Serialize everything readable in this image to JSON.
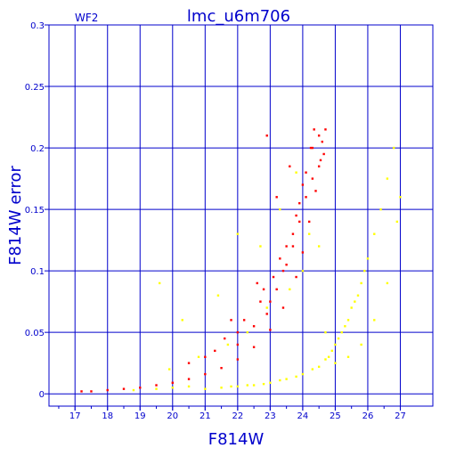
{
  "figure": {
    "corner_label": "WF2",
    "title": "lmc_u6m706",
    "x_label": "F814W",
    "y_label": "F814W error"
  },
  "colors": {
    "background": "#ffffff",
    "grid": "#0000cc",
    "text": "#0000cc",
    "series_red": "#ff0000",
    "series_yellow": "#ffff00"
  },
  "chart_data": {
    "type": "scatter",
    "title": "lmc_u6m706",
    "xlabel": "F814W",
    "ylabel": "F814W error",
    "xlim": [
      16.2,
      28.0
    ],
    "ylim": [
      -0.01,
      0.3
    ],
    "x_ticks": [
      17,
      18,
      19,
      20,
      21,
      22,
      23,
      24,
      25,
      26,
      27
    ],
    "x_tick_labels": [
      "17",
      "18",
      "19",
      "20",
      "21",
      "22",
      "23",
      "24",
      "25",
      "26",
      "27"
    ],
    "y_ticks": [
      0,
      0.05,
      0.1,
      0.15,
      0.2,
      0.25,
      0.3
    ],
    "y_tick_labels": [
      "0",
      "0.05",
      "0.1",
      "0.15",
      "0.2",
      "0.25",
      "0.3"
    ],
    "grid": true,
    "series": [
      {
        "color": "#ff0000",
        "points": [
          [
            17.2,
            0.002
          ],
          [
            17.5,
            0.002
          ],
          [
            18.0,
            0.003
          ],
          [
            18.5,
            0.004
          ],
          [
            19.0,
            0.005
          ],
          [
            19.5,
            0.007
          ],
          [
            20.0,
            0.009
          ],
          [
            20.5,
            0.012
          ],
          [
            21.0,
            0.016
          ],
          [
            21.5,
            0.021
          ],
          [
            22.0,
            0.028
          ],
          [
            22.5,
            0.038
          ],
          [
            23.0,
            0.052
          ],
          [
            23.4,
            0.07
          ],
          [
            23.8,
            0.095
          ],
          [
            24.0,
            0.115
          ],
          [
            24.2,
            0.14
          ],
          [
            24.4,
            0.165
          ],
          [
            24.55,
            0.19
          ],
          [
            24.7,
            0.215
          ],
          [
            22.0,
            0.04
          ],
          [
            22.5,
            0.055
          ],
          [
            23.0,
            0.075
          ],
          [
            23.4,
            0.1
          ],
          [
            23.7,
            0.13
          ],
          [
            23.9,
            0.155
          ],
          [
            24.1,
            0.18
          ],
          [
            24.25,
            0.2
          ],
          [
            24.35,
            0.215
          ],
          [
            21.0,
            0.03
          ],
          [
            21.6,
            0.045
          ],
          [
            22.2,
            0.06
          ],
          [
            22.7,
            0.075
          ],
          [
            23.1,
            0.095
          ],
          [
            23.5,
            0.12
          ],
          [
            23.8,
            0.145
          ],
          [
            24.0,
            0.17
          ],
          [
            24.3,
            0.2
          ],
          [
            24.5,
            0.21
          ],
          [
            20.5,
            0.025
          ],
          [
            21.3,
            0.035
          ],
          [
            22.0,
            0.05
          ],
          [
            22.8,
            0.085
          ],
          [
            23.3,
            0.11
          ],
          [
            22.9,
            0.21
          ],
          [
            23.6,
            0.185
          ],
          [
            23.2,
            0.16
          ],
          [
            22.6,
            0.09
          ],
          [
            21.8,
            0.06
          ],
          [
            24.6,
            0.205
          ],
          [
            24.65,
            0.195
          ],
          [
            24.5,
            0.185
          ],
          [
            24.3,
            0.175
          ],
          [
            24.1,
            0.16
          ],
          [
            23.9,
            0.14
          ],
          [
            23.7,
            0.12
          ],
          [
            23.5,
            0.105
          ],
          [
            23.2,
            0.085
          ],
          [
            22.9,
            0.065
          ]
        ]
      },
      {
        "color": "#ffff00",
        "points": [
          [
            18.8,
            0.003
          ],
          [
            19.5,
            0.004
          ],
          [
            20.0,
            0.005
          ],
          [
            20.5,
            0.006
          ],
          [
            21.0,
            0.004
          ],
          [
            21.5,
            0.005
          ],
          [
            22.0,
            0.006
          ],
          [
            22.5,
            0.007
          ],
          [
            23.0,
            0.009
          ],
          [
            23.5,
            0.012
          ],
          [
            24.0,
            0.016
          ],
          [
            24.5,
            0.022
          ],
          [
            24.8,
            0.03
          ],
          [
            25.0,
            0.04
          ],
          [
            25.2,
            0.05
          ],
          [
            25.4,
            0.06
          ],
          [
            25.6,
            0.075
          ],
          [
            25.8,
            0.09
          ],
          [
            26.0,
            0.11
          ],
          [
            26.2,
            0.13
          ],
          [
            26.4,
            0.15
          ],
          [
            26.6,
            0.175
          ],
          [
            26.8,
            0.2
          ],
          [
            27.0,
            0.16
          ],
          [
            26.9,
            0.14
          ],
          [
            25.9,
            0.1
          ],
          [
            25.7,
            0.08
          ],
          [
            25.5,
            0.07
          ],
          [
            25.3,
            0.055
          ],
          [
            25.1,
            0.045
          ],
          [
            24.9,
            0.035
          ],
          [
            24.7,
            0.028
          ],
          [
            24.3,
            0.02
          ],
          [
            23.8,
            0.014
          ],
          [
            23.3,
            0.011
          ],
          [
            22.8,
            0.008
          ],
          [
            22.3,
            0.007
          ],
          [
            21.8,
            0.006
          ],
          [
            19.6,
            0.09
          ],
          [
            20.3,
            0.06
          ],
          [
            21.4,
            0.08
          ],
          [
            22.0,
            0.13
          ],
          [
            22.7,
            0.12
          ],
          [
            23.3,
            0.15
          ],
          [
            23.8,
            0.18
          ],
          [
            24.2,
            0.13
          ],
          [
            24.5,
            0.12
          ],
          [
            24.0,
            0.1
          ],
          [
            23.6,
            0.085
          ],
          [
            22.9,
            0.07
          ],
          [
            22.3,
            0.05
          ],
          [
            21.7,
            0.04
          ],
          [
            20.8,
            0.03
          ],
          [
            19.9,
            0.02
          ],
          [
            24.7,
            0.05
          ],
          [
            25.0,
            0.025
          ],
          [
            25.4,
            0.03
          ],
          [
            25.8,
            0.04
          ],
          [
            26.2,
            0.06
          ],
          [
            26.6,
            0.09
          ]
        ]
      }
    ]
  }
}
